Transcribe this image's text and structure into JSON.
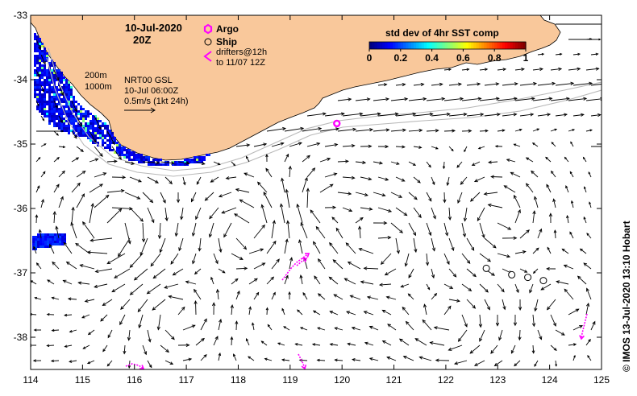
{
  "map": {
    "lon_range": [
      114,
      125
    ],
    "lat_range": [
      -38.5,
      -33
    ],
    "x_ticks": [
      114,
      115,
      116,
      117,
      118,
      119,
      120,
      121,
      122,
      123,
      124,
      125
    ],
    "y_ticks": [
      -33,
      -34,
      -35,
      -36,
      -37,
      -38
    ],
    "land_color": "#f9c89b",
    "ocean_color": "#ffffff",
    "isobath_color": "#b8b8b8",
    "arrow_color": "#000000",
    "argo_color": "#ff00ff",
    "drifter_color": "#ff00ff"
  },
  "title": {
    "date": "10-Jul-2020",
    "time": "20Z"
  },
  "legend": {
    "argo_label": "Argo",
    "ship_label": "Ship",
    "drifters_label_1": "drifters@12h",
    "drifters_label_2": "to 11/07 12Z"
  },
  "info": {
    "isobath_1": "200m",
    "isobath_2": "1000m",
    "product": "NRT00 GSL",
    "analysis_time": "10-Jul 06:00Z",
    "scale": "0.5m/s (1kt 24h)"
  },
  "colorbar": {
    "title": "std dev of 4hr SST comp",
    "ticks": [
      "0",
      "0.2",
      "0.4",
      "0.6",
      "0.8",
      "1"
    ]
  },
  "credit": "© IMOS 13-Jul-2020 13:10 Hobart",
  "argo_floats": [
    {
      "lon": 119.9,
      "lat": -34.68
    }
  ],
  "ships": [
    {
      "lon": 122.78,
      "lat": -36.93
    },
    {
      "lon": 123.27,
      "lat": -37.03
    },
    {
      "lon": 123.58,
      "lat": -37.07
    },
    {
      "lon": 123.88,
      "lat": -37.12
    }
  ]
}
